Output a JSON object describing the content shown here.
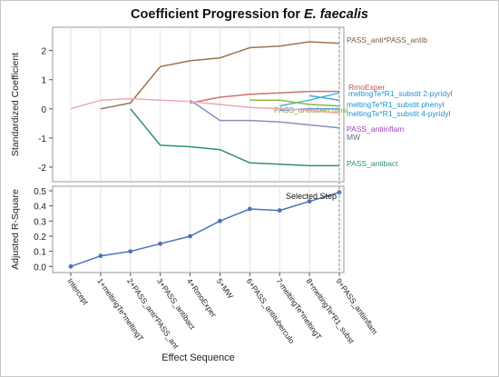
{
  "title_main": "Coefficient Progression for ",
  "title_species": "E. faecalis",
  "chart_data": [
    {
      "type": "line",
      "ylabel": "Standardized Coefficient",
      "ylim": [
        -2.5,
        2.8
      ],
      "yticks": [
        2,
        1,
        0,
        -1,
        -2
      ],
      "x": [
        0,
        1,
        2,
        3,
        4,
        5,
        6,
        7,
        8,
        9
      ],
      "series": [
        {
          "name": "PASS_anti*PASS_antib",
          "color": "#9b7452",
          "values": [
            null,
            0,
            0.2,
            1.45,
            1.65,
            1.75,
            2.1,
            2.15,
            2.3,
            2.25
          ]
        },
        {
          "name": "RmoExper",
          "color": "#d36f72",
          "values": [
            null,
            null,
            null,
            null,
            0.2,
            0.4,
            0.5,
            0.55,
            0.6,
            0.6
          ]
        },
        {
          "name": "meltingTe*R1_substit 2-pyridyl",
          "color": "#47b3e2",
          "values": [
            null,
            null,
            null,
            null,
            null,
            null,
            null,
            0.1,
            0.3,
            0.55
          ]
        },
        {
          "name": "meltingTe*R1_substit phenyl",
          "color": "#4aa8d8",
          "values": [
            null,
            null,
            null,
            null,
            null,
            null,
            null,
            null,
            0.45,
            0.3
          ]
        },
        {
          "name": "PASS_antituberculosi",
          "color": "#8fb83a",
          "values": [
            null,
            null,
            null,
            null,
            null,
            null,
            0.3,
            0.3,
            0.15,
            0.1
          ]
        },
        {
          "name": "meltingTe*R1_substit 4-pyridyl",
          "color": "#6a9fd4",
          "values": [
            null,
            null,
            null,
            null,
            null,
            null,
            null,
            -0.05,
            0.0,
            0.0
          ]
        },
        {
          "name": "PASS_antiinflam",
          "color": "#b35fd1",
          "values": [
            null,
            null,
            null,
            null,
            null,
            null,
            null,
            null,
            null,
            -0.35
          ]
        },
        {
          "name": "MW",
          "color": "#8a90b8",
          "values": [
            null,
            null,
            null,
            null,
            0.3,
            -0.4,
            -0.4,
            -0.45,
            -0.55,
            -0.65
          ]
        },
        {
          "name": "PASS_antibact",
          "color": "#2f8f7a",
          "values": [
            null,
            null,
            0,
            -1.25,
            -1.3,
            -1.4,
            -1.85,
            -1.9,
            -1.95,
            -1.95
          ]
        },
        {
          "name": "",
          "color": "#f2a8b0",
          "values": [
            0,
            0.3,
            0.35,
            0.3,
            0.25,
            0.15,
            0.05,
            0.0,
            -0.05,
            -0.15
          ]
        }
      ]
    },
    {
      "type": "line",
      "ylabel": "Adjusted R-Square",
      "xlabel": "Effect Sequence",
      "ylim": [
        -0.04,
        0.53
      ],
      "yticks": [
        0.0,
        0.1,
        0.2,
        0.3,
        0.4,
        0.5
      ],
      "categories": [
        "Intercept",
        "1+meltingTe*meltingT",
        "2+PASS_anti*PASS_ant",
        "3+PASS_antibact",
        "4+RmoExper",
        "5+MW",
        "6+PASS_antituberculo",
        "7-meltingTe*meltingT",
        "8+meltingTe*R1_subst",
        "9+PASS_antiinflam"
      ],
      "values": [
        0.0,
        0.07,
        0.1,
        0.15,
        0.2,
        0.3,
        0.38,
        0.37,
        0.43,
        0.49
      ],
      "color": "#4b72b8",
      "selected_index": 9,
      "annotation": "Selected Step"
    }
  ]
}
